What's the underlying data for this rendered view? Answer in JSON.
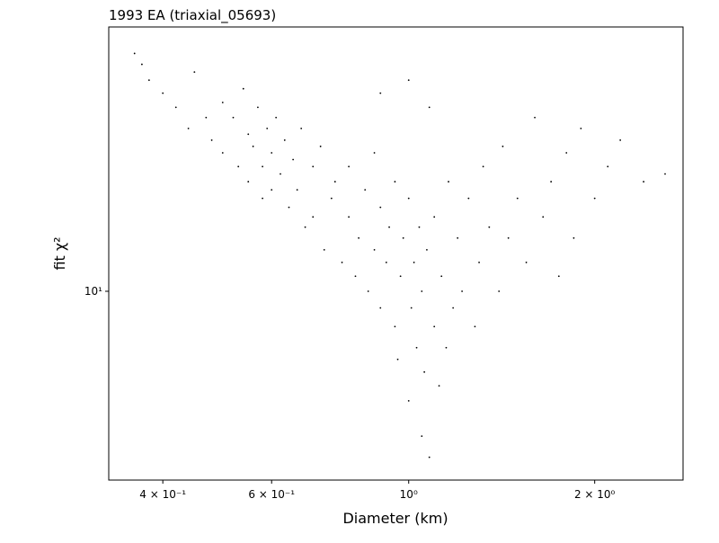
{
  "chart_data": {
    "type": "scatter",
    "title": "1993 EA (triaxial_05693)",
    "x_label": "Diameter (km)",
    "y_label": "fit χ²",
    "xscale": "log",
    "yscale": "log",
    "color": "#000000",
    "xlim": [
      0.327,
      2.78
    ],
    "ylim": [
      3.03,
      53.2
    ],
    "xticks": [
      {
        "value": 0.4,
        "label": "4 × 10⁻¹"
      },
      {
        "value": 0.6,
        "label": "6 × 10⁻¹"
      },
      {
        "value": 1,
        "label": "10⁰"
      },
      {
        "value": 2,
        "label": "2 × 10⁰"
      }
    ],
    "yticks": [
      {
        "value": 10,
        "label": "10¹"
      }
    ],
    "x": [
      0.36,
      0.37,
      0.38,
      0.4,
      0.42,
      0.44,
      0.45,
      0.47,
      0.48,
      0.5,
      0.5,
      0.52,
      0.53,
      0.54,
      0.55,
      0.55,
      0.56,
      0.57,
      0.58,
      0.58,
      0.59,
      0.6,
      0.6,
      0.61,
      0.62,
      0.63,
      0.64,
      0.65,
      0.66,
      0.67,
      0.68,
      0.7,
      0.7,
      0.72,
      0.73,
      0.75,
      0.76,
      0.78,
      0.8,
      0.8,
      0.82,
      0.83,
      0.85,
      0.86,
      0.88,
      0.88,
      0.9,
      0.9,
      0.92,
      0.93,
      0.95,
      0.95,
      0.96,
      0.97,
      0.98,
      1.0,
      1.0,
      1.01,
      1.02,
      1.03,
      1.04,
      1.05,
      1.05,
      1.06,
      1.07,
      1.08,
      1.1,
      1.1,
      1.12,
      1.13,
      1.15,
      1.16,
      1.18,
      1.2,
      1.22,
      1.25,
      1.28,
      1.3,
      1.32,
      1.35,
      1.4,
      1.42,
      1.45,
      1.5,
      1.55,
      1.6,
      1.65,
      1.7,
      1.75,
      1.8,
      1.85,
      1.9,
      2.0,
      2.1,
      2.2,
      2.4,
      2.6,
      0.9,
      1.0,
      1.08
    ],
    "values": [
      45,
      42,
      38,
      35,
      32,
      28,
      40,
      30,
      26,
      33,
      24,
      30,
      22,
      36,
      27,
      20,
      25,
      32,
      22,
      18,
      28,
      24,
      19,
      30,
      21,
      26,
      17,
      23,
      19,
      28,
      15,
      22,
      16,
      25,
      13,
      18,
      20,
      12,
      16,
      22,
      11,
      14,
      19,
      10,
      13,
      24,
      17,
      9,
      12,
      15,
      8,
      20,
      6.5,
      11,
      14,
      18,
      5,
      9,
      12,
      7,
      15,
      4,
      10,
      6,
      13,
      3.5,
      8,
      16,
      5.5,
      11,
      7,
      20,
      9,
      14,
      10,
      18,
      8,
      12,
      22,
      15,
      10,
      25,
      14,
      18,
      12,
      30,
      16,
      20,
      11,
      24,
      14,
      28,
      18,
      22,
      26,
      20,
      21,
      35,
      38,
      32
    ]
  }
}
